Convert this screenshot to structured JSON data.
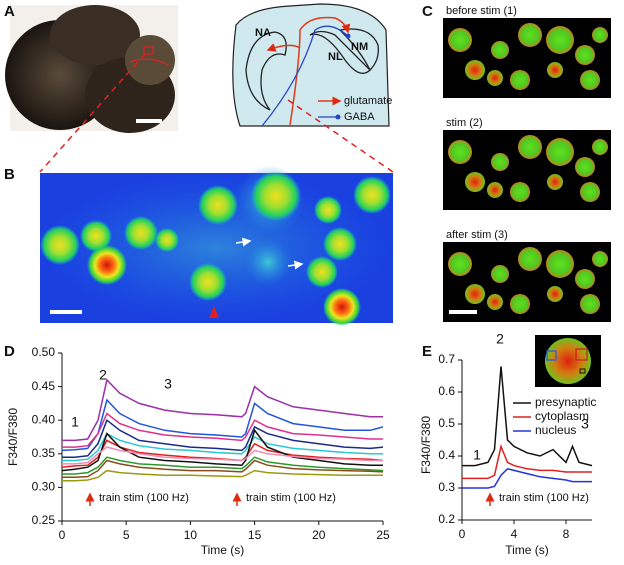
{
  "panels": {
    "a": "A",
    "b": "B",
    "c": "C",
    "d": "D",
    "e": "E"
  },
  "diagram": {
    "na": "NA",
    "nl": "NL",
    "nm": "NM",
    "glutamate": "glutamate",
    "gaba": "GABA"
  },
  "images_c": [
    "before stim (1)",
    "stim (2)",
    "after stim (3)"
  ],
  "chart_data": [
    {
      "type": "line",
      "x_label": "Time (s)",
      "y_label": "F340/F380",
      "annotations": [
        "1",
        "2",
        "3"
      ],
      "stim_labels": [
        "train stim (100 Hz)",
        "train stim (100 Hz)"
      ],
      "x": [
        0,
        1,
        2,
        2.8,
        3.5,
        4.5,
        6,
        8,
        10,
        12,
        14,
        14.3,
        15,
        16,
        18,
        20,
        22,
        24,
        25
      ],
      "xlim": [
        0,
        25
      ],
      "xticks": [
        0,
        5,
        10,
        15,
        20,
        25
      ],
      "ylim": [
        0.25,
        0.5
      ],
      "yticks": [
        {
          "value": 0.25,
          "label": "0.25"
        },
        {
          "value": 0.3,
          "label": "0.30"
        },
        {
          "value": 0.35,
          "label": "0.35"
        },
        {
          "value": 0.4,
          "label": "0.40"
        },
        {
          "value": 0.45,
          "label": "0.45"
        },
        {
          "value": 0.5,
          "label": "0.50"
        }
      ],
      "grid": false,
      "series": [
        {
          "color": "#9b2fa8",
          "values": [
            0.37,
            0.37,
            0.372,
            0.4,
            0.46,
            0.44,
            0.425,
            0.415,
            0.41,
            0.408,
            0.405,
            0.41,
            0.45,
            0.435,
            0.42,
            0.415,
            0.41,
            0.405,
            0.405
          ]
        },
        {
          "color": "#2255dd",
          "values": [
            0.355,
            0.356,
            0.358,
            0.38,
            0.43,
            0.41,
            0.395,
            0.385,
            0.38,
            0.378,
            0.375,
            0.38,
            0.425,
            0.41,
            0.395,
            0.39,
            0.385,
            0.385,
            0.39
          ]
        },
        {
          "color": "#e0308c",
          "values": [
            0.36,
            0.36,
            0.362,
            0.38,
            0.41,
            0.395,
            0.385,
            0.378,
            0.375,
            0.373,
            0.37,
            0.375,
            0.4,
            0.39,
            0.38,
            0.378,
            0.375,
            0.372,
            0.372
          ]
        },
        {
          "color": "#1a2a8a",
          "values": [
            0.345,
            0.345,
            0.347,
            0.365,
            0.4,
            0.385,
            0.37,
            0.365,
            0.36,
            0.358,
            0.355,
            0.36,
            0.39,
            0.38,
            0.37,
            0.365,
            0.36,
            0.358,
            0.36
          ]
        },
        {
          "color": "#28c8d8",
          "values": [
            0.34,
            0.34,
            0.342,
            0.355,
            0.38,
            0.37,
            0.362,
            0.357,
            0.355,
            0.352,
            0.35,
            0.355,
            0.375,
            0.365,
            0.358,
            0.355,
            0.352,
            0.35,
            0.35
          ]
        },
        {
          "color": "#e02020",
          "values": [
            0.33,
            0.332,
            0.333,
            0.345,
            0.37,
            0.36,
            0.352,
            0.348,
            0.345,
            0.343,
            0.34,
            0.345,
            0.365,
            0.355,
            0.348,
            0.345,
            0.343,
            0.342,
            0.34
          ]
        },
        {
          "color": "#111111",
          "values": [
            0.325,
            0.327,
            0.33,
            0.34,
            0.38,
            0.36,
            0.345,
            0.34,
            0.338,
            0.335,
            0.333,
            0.34,
            0.385,
            0.36,
            0.345,
            0.34,
            0.335,
            0.333,
            0.333
          ]
        },
        {
          "color": "#f08cb4",
          "values": [
            0.335,
            0.335,
            0.337,
            0.35,
            0.36,
            0.355,
            0.35,
            0.345,
            0.343,
            0.342,
            0.34,
            0.343,
            0.355,
            0.35,
            0.346,
            0.343,
            0.342,
            0.34,
            0.34
          ]
        },
        {
          "color": "#2a9a2a",
          "values": [
            0.32,
            0.32,
            0.322,
            0.33,
            0.345,
            0.34,
            0.335,
            0.333,
            0.33,
            0.33,
            0.328,
            0.332,
            0.345,
            0.338,
            0.333,
            0.33,
            0.328,
            0.326,
            0.325
          ]
        },
        {
          "color": "#8a4a1a",
          "values": [
            0.315,
            0.315,
            0.316,
            0.325,
            0.34,
            0.335,
            0.33,
            0.327,
            0.325,
            0.325,
            0.323,
            0.327,
            0.34,
            0.333,
            0.328,
            0.326,
            0.325,
            0.324,
            0.323
          ]
        },
        {
          "color": "#9a9a10",
          "values": [
            0.31,
            0.31,
            0.311,
            0.315,
            0.325,
            0.322,
            0.32,
            0.318,
            0.318,
            0.317,
            0.316,
            0.318,
            0.325,
            0.322,
            0.32,
            0.319,
            0.318,
            0.318,
            0.318
          ]
        }
      ]
    },
    {
      "type": "line",
      "x_label": "Time (s)",
      "y_label": "F340/F380",
      "annotations": [
        "1",
        "2",
        "3"
      ],
      "stim_labels": [
        "train stim (100 Hz)"
      ],
      "x": [
        0,
        1,
        2,
        2.5,
        3,
        3.5,
        4,
        5,
        6,
        7,
        8,
        8.5,
        9,
        10
      ],
      "xlim": [
        0,
        10
      ],
      "xticks": [
        0,
        4,
        8
      ],
      "ylim": [
        0.2,
        0.7
      ],
      "yticks": [
        0.2,
        0.3,
        0.4,
        0.5,
        0.6,
        0.7
      ],
      "grid": false,
      "legend": "upper right",
      "series": [
        {
          "name": "presynaptic",
          "color": "#111111",
          "values": [
            0.37,
            0.37,
            0.38,
            0.42,
            0.68,
            0.45,
            0.43,
            0.41,
            0.4,
            0.42,
            0.38,
            0.43,
            0.38,
            0.37
          ]
        },
        {
          "name": "cytoplasm",
          "color": "#e02020",
          "values": [
            0.33,
            0.33,
            0.33,
            0.34,
            0.43,
            0.38,
            0.37,
            0.36,
            0.355,
            0.355,
            0.35,
            0.35,
            0.35,
            0.35
          ]
        },
        {
          "name": "nucleus",
          "color": "#2233dd",
          "values": [
            0.3,
            0.3,
            0.3,
            0.305,
            0.34,
            0.36,
            0.355,
            0.345,
            0.335,
            0.33,
            0.325,
            0.32,
            0.32,
            0.32
          ]
        }
      ]
    }
  ]
}
